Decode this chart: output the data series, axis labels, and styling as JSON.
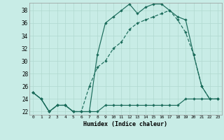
{
  "xlabel": "Humidex (Indice chaleur)",
  "bg_color": "#c8ece6",
  "grid_color": "#b0d8d0",
  "line_color": "#1a6b5a",
  "xlim_min": -0.5,
  "xlim_max": 23.5,
  "ylim_min": 21.5,
  "ylim_max": 39.2,
  "xticks": [
    0,
    1,
    2,
    3,
    4,
    5,
    6,
    7,
    8,
    9,
    10,
    11,
    12,
    13,
    14,
    15,
    16,
    17,
    18,
    19,
    20,
    21,
    22,
    23
  ],
  "yticks": [
    22,
    24,
    26,
    28,
    30,
    32,
    34,
    36,
    38
  ],
  "line_flat": {
    "x": [
      0,
      1,
      2,
      3,
      4,
      5,
      6,
      7,
      8,
      9,
      10,
      11,
      12,
      13,
      14,
      15,
      16,
      17,
      18,
      19,
      20,
      21,
      22,
      23
    ],
    "y": [
      25,
      24,
      22,
      23,
      23,
      22,
      22,
      22,
      22,
      23,
      23,
      23,
      23,
      23,
      23,
      23,
      23,
      23,
      23,
      24,
      24,
      24,
      24,
      24
    ]
  },
  "line_upper": {
    "x": [
      0,
      1,
      2,
      3,
      4,
      5,
      6,
      7,
      8,
      9,
      10,
      11,
      12,
      13,
      14,
      15,
      16,
      17,
      18,
      19,
      20,
      21,
      22,
      23
    ],
    "y": [
      25,
      24,
      22,
      23,
      23,
      22,
      22,
      22,
      31,
      36,
      37,
      38,
      39,
      37.5,
      38.5,
      39,
      39,
      38,
      37,
      36.5,
      31,
      26,
      24,
      24
    ]
  },
  "line_diag": {
    "x": [
      0,
      1,
      2,
      3,
      4,
      5,
      6,
      7,
      8,
      9,
      10,
      11,
      12,
      13,
      14,
      15,
      16,
      17,
      18,
      19,
      20,
      21,
      22,
      23
    ],
    "y": [
      25,
      24,
      22,
      23,
      23,
      22,
      22,
      26,
      29,
      30,
      32,
      33,
      35,
      36,
      36.5,
      37,
      37.5,
      38,
      36.5,
      34.5,
      31,
      26,
      24,
      24
    ]
  }
}
